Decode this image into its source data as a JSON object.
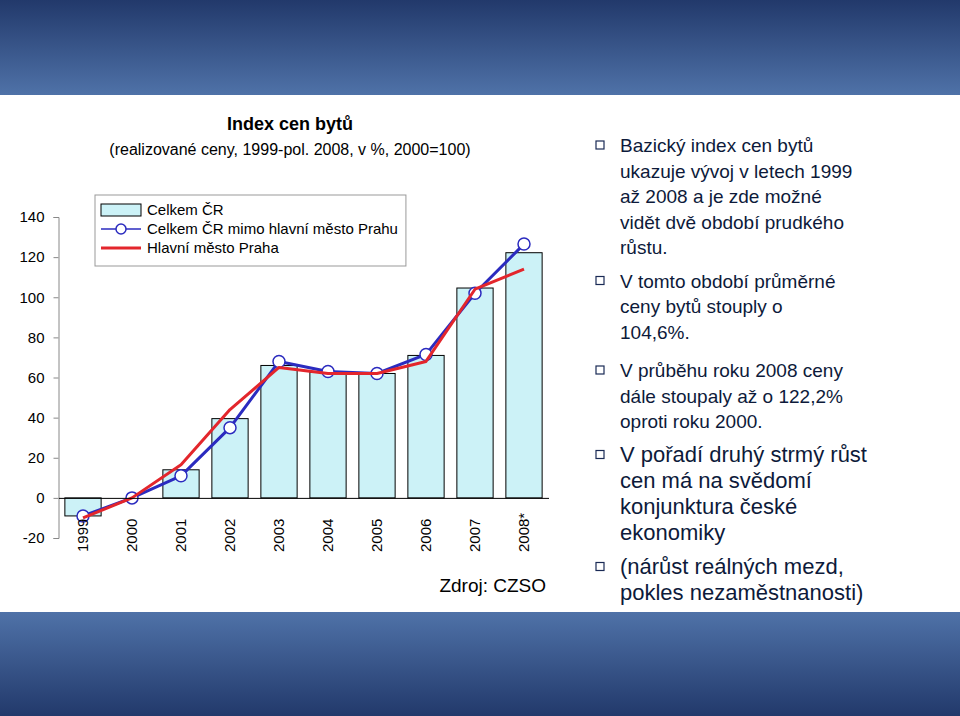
{
  "chart_data": {
    "type": "bar",
    "title": "Index cen bytů",
    "subtitle": "(realizované ceny, 1999-pol. 2008, v %, 2000=100)",
    "categories": [
      "1999",
      "2000",
      "2001",
      "2002",
      "2003",
      "2004",
      "2005",
      "2006",
      "2007",
      "2008*"
    ],
    "series": [
      {
        "name": "Celkem ČR",
        "type": "bar",
        "color": "#ccf2f7",
        "values": [
          -9,
          0,
          14,
          39.5,
          66,
          62.5,
          62,
          71,
          104.6,
          122.2
        ]
      },
      {
        "name": "Celkem ČR mimo hlavní město Prahu",
        "type": "line",
        "color": "#2b2bbf",
        "marker": "circle",
        "values": [
          -9,
          0,
          11,
          35,
          68,
          63,
          62,
          71.5,
          102,
          126.5
        ]
      },
      {
        "name": "Hlavní město Praha",
        "type": "line",
        "color": "#e3262c",
        "values": [
          -10,
          0,
          16.5,
          44,
          65,
          62,
          62,
          68,
          104,
          114
        ]
      }
    ],
    "ylim": [
      -20,
      140
    ],
    "yticks": [
      -20,
      0,
      20,
      40,
      60,
      80,
      100,
      120,
      140
    ],
    "grid": false,
    "legend": "upper left",
    "annotations": [
      "Zdroj: CZSO"
    ]
  },
  "bullets": [
    {
      "lines": [
        "Bazický index cen bytů",
        "ukazuje vývoj v letech 1999",
        "až 2008 a je zde možné",
        "vidět dvě období prudkého",
        "růstu."
      ]
    },
    {
      "lines": [
        "V tomto období průměrné",
        "ceny bytů stouply o",
        "104,6%."
      ]
    },
    {
      "lines": [
        "V průběhu roku 2008 ceny",
        "dále stoupaly až o 122,2%",
        "oproti roku 2000."
      ]
    },
    {
      "lines": [
        "V pořadí druhý strmý růst",
        "cen má na svědomí",
        "konjunktura české",
        "ekonomiky"
      ]
    },
    {
      "lines": [
        "(nárůst reálných mezd,",
        "pokles nezaměstnanosti)"
      ]
    }
  ]
}
